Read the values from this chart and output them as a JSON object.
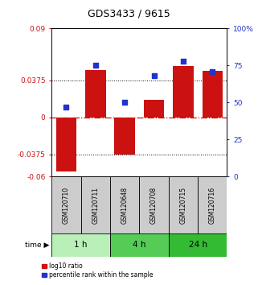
{
  "title": "GDS3433 / 9615",
  "samples": [
    "GSM120710",
    "GSM120711",
    "GSM120648",
    "GSM120708",
    "GSM120715",
    "GSM120716"
  ],
  "groups": [
    {
      "label": "1 h",
      "indices": [
        0,
        1
      ],
      "color": "#b8f0b8"
    },
    {
      "label": "4 h",
      "indices": [
        2,
        3
      ],
      "color": "#55cc55"
    },
    {
      "label": "24 h",
      "indices": [
        4,
        5
      ],
      "color": "#33bb33"
    }
  ],
  "log10_ratio": [
    -0.055,
    0.048,
    -0.038,
    0.018,
    0.052,
    0.047
  ],
  "percentile_rank": [
    47,
    75,
    50,
    68,
    78,
    71
  ],
  "ylim_left": [
    -0.06,
    0.09
  ],
  "ylim_right": [
    0,
    100
  ],
  "yticks_left": [
    -0.06,
    -0.0375,
    0,
    0.0375,
    0.09
  ],
  "yticks_right": [
    0,
    25,
    50,
    75,
    100
  ],
  "ytick_labels_left": [
    "-0.06",
    "-0.0375",
    "0",
    "0.0375",
    "0.09"
  ],
  "ytick_labels_right": [
    "0",
    "25",
    "50",
    "75",
    "100%"
  ],
  "hlines": [
    0.0375,
    -0.0375
  ],
  "bar_color": "#cc1111",
  "dot_color": "#2233cc",
  "zero_line_color": "#cc1111",
  "bg_color": "#ffffff",
  "sample_box_color": "#cccccc",
  "bar_width": 0.7,
  "xlim": [
    -0.5,
    5.5
  ]
}
